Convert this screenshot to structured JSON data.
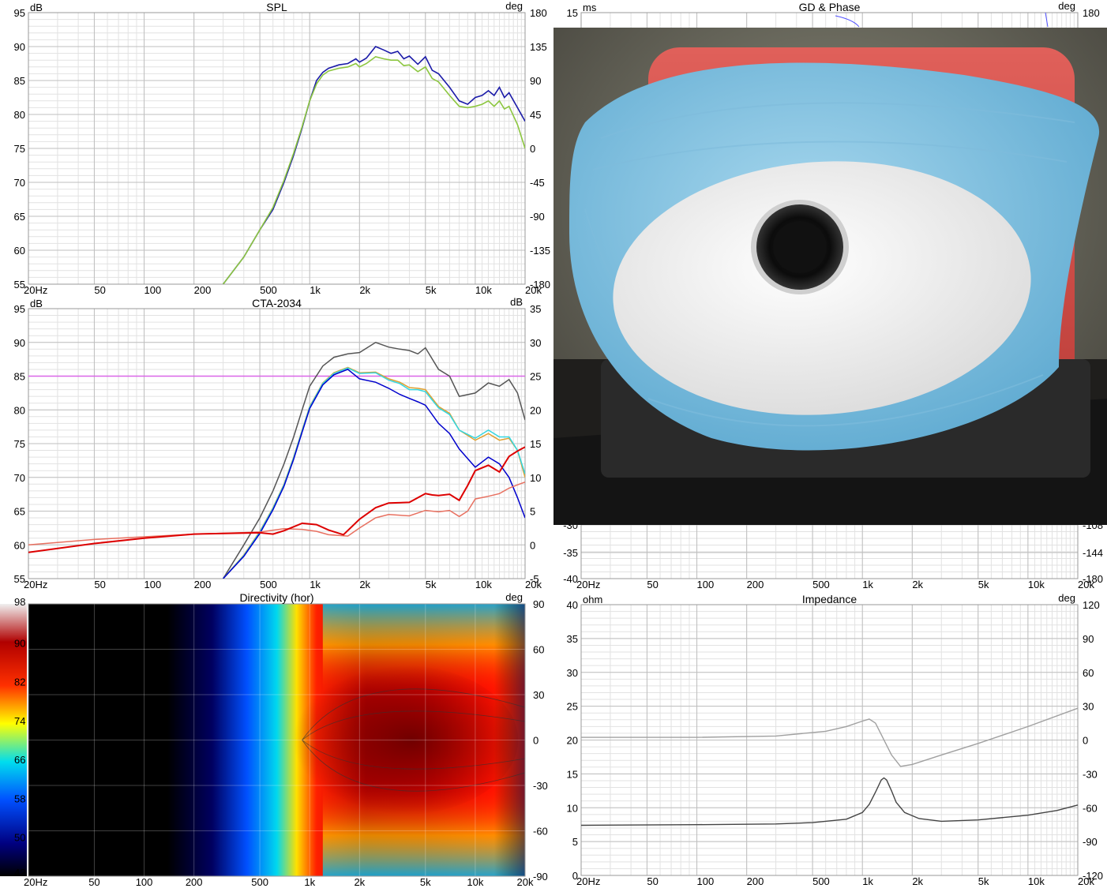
{
  "freq_ticks": [
    "20Hz",
    "50",
    "100",
    "200",
    "500",
    "1k",
    "2k",
    "5k",
    "10k",
    "20k"
  ],
  "colors": {
    "grid_major": "#bfbfbf",
    "grid_minor": "#e2e2e2",
    "spl_blue": "#1a1aa8",
    "spl_green": "#8cc63f",
    "onaxis_gray": "#555555",
    "listening_window": "#e0a030",
    "early_reflections": "#33d6e0",
    "sound_power": "#0000cc",
    "target_line": "#d966e8",
    "er_di": "#e87060",
    "sp_di": "#dd0000",
    "gd_blue": "#5050ff",
    "impedance_mag": "#444444",
    "impedance_phase": "#a0a0a0"
  },
  "chart_data": [
    {
      "type": "line",
      "id": "spl",
      "title": "SPL",
      "left_unit": "dB",
      "right_unit": "deg",
      "x_scale": "log",
      "xlim": [
        20,
        20000
      ],
      "ylim": [
        55,
        95
      ],
      "yticks": [
        "55",
        "60",
        "65",
        "70",
        "75",
        "80",
        "85",
        "90",
        "95"
      ],
      "y2lim": [
        -180,
        180
      ],
      "y2ticks": [
        "-180",
        "-135",
        "-90",
        "-45",
        "0",
        "45",
        "90",
        "135",
        "180"
      ],
      "series": [
        {
          "color_key": "spl_blue",
          "x": [
            300,
            400,
            500,
            600,
            700,
            800,
            900,
            1000,
            1100,
            1200,
            1300,
            1500,
            1700,
            1900,
            2000,
            2200,
            2500,
            2800,
            3100,
            3400,
            3700,
            4000,
            4500,
            5000,
            5500,
            6000,
            7000,
            8000,
            9000,
            10000,
            11000,
            12000,
            13000,
            14000,
            15000,
            16000,
            18000,
            20000
          ],
          "y": [
            55,
            59,
            63,
            66,
            70,
            74,
            78,
            82,
            85,
            86.2,
            86.8,
            87.3,
            87.5,
            88.2,
            87.7,
            88.3,
            90,
            89.5,
            89,
            89.3,
            88.2,
            88.6,
            87.4,
            88.5,
            86.5,
            86,
            84,
            82,
            81.5,
            82.5,
            82.8,
            83.5,
            82.8,
            84,
            82.5,
            83.2,
            81,
            79
          ]
        },
        {
          "color_key": "spl_green",
          "x": [
            300,
            400,
            500,
            600,
            700,
            800,
            900,
            1000,
            1100,
            1200,
            1300,
            1500,
            1700,
            1900,
            2000,
            2200,
            2500,
            2800,
            3100,
            3400,
            3700,
            4000,
            4500,
            5000,
            5500,
            6000,
            7000,
            8000,
            9000,
            10000,
            11000,
            12000,
            13000,
            14000,
            15000,
            16000,
            18000,
            20000
          ],
          "y": [
            55,
            59,
            63,
            66.3,
            70.3,
            74.3,
            78.2,
            82,
            84.5,
            85.8,
            86.4,
            86.8,
            87,
            87.5,
            87,
            87.5,
            88.5,
            88.2,
            88,
            88,
            87.2,
            87.3,
            86.3,
            87,
            85.3,
            84.8,
            82.8,
            81.2,
            81,
            81.2,
            81.5,
            82,
            81.2,
            82,
            80.8,
            81.2,
            78.5,
            75
          ]
        }
      ]
    },
    {
      "type": "line",
      "id": "cta",
      "title": "CTA-2034",
      "left_unit": "dB",
      "right_unit": "dB",
      "x_scale": "log",
      "xlim": [
        20,
        20000
      ],
      "ylim": [
        55,
        95
      ],
      "yticks": [
        "55",
        "60",
        "65",
        "70",
        "75",
        "80",
        "85",
        "90",
        "95"
      ],
      "y2lim": [
        -5,
        35
      ],
      "y2ticks": [
        "-5",
        "0",
        "5",
        "10",
        "15",
        "20",
        "25",
        "30",
        "35"
      ],
      "series": [
        {
          "color_key": "target_line",
          "x": [
            20,
            20000
          ],
          "y": [
            85,
            85
          ]
        },
        {
          "color_key": "onaxis_gray",
          "x": [
            300,
            400,
            500,
            600,
            700,
            800,
            900,
            1000,
            1200,
            1400,
            1700,
            2000,
            2500,
            3000,
            3500,
            4000,
            4500,
            5000,
            6000,
            7000,
            8000,
            10000,
            12000,
            14000,
            16000,
            18000,
            20000
          ],
          "y": [
            55,
            60,
            64,
            68,
            72,
            76,
            80,
            83.5,
            86.5,
            87.8,
            88.3,
            88.5,
            90,
            89.3,
            89,
            88.8,
            88.3,
            89.2,
            86,
            85,
            82,
            82.5,
            84,
            83.5,
            84.5,
            82.5,
            78.5
          ]
        },
        {
          "color_key": "listening_window",
          "x": [
            300,
            400,
            500,
            600,
            700,
            800,
            900,
            1000,
            1200,
            1400,
            1700,
            2000,
            2500,
            3000,
            3500,
            4000,
            4500,
            5000,
            6000,
            7000,
            8000,
            10000,
            12000,
            14000,
            16000,
            18000,
            20000
          ],
          "y": [
            55,
            58.5,
            62,
            65.5,
            69,
            73,
            77,
            80.5,
            84,
            85.5,
            86.3,
            85.5,
            85.6,
            84.6,
            84.1,
            83.3,
            83.2,
            83,
            80.5,
            79.5,
            77,
            75.5,
            76.5,
            75.5,
            75.8,
            74,
            70
          ]
        },
        {
          "color_key": "early_reflections",
          "x": [
            300,
            400,
            500,
            600,
            700,
            800,
            900,
            1000,
            1200,
            1400,
            1700,
            2000,
            2500,
            3000,
            3500,
            4000,
            4500,
            5000,
            6000,
            7000,
            8000,
            10000,
            12000,
            14000,
            16000,
            18000,
            20000
          ],
          "y": [
            55,
            58.4,
            61.9,
            65.4,
            68.9,
            72.9,
            76.9,
            80.4,
            83.9,
            85.4,
            86.2,
            85.4,
            85.5,
            84.4,
            83.9,
            83,
            83,
            82.7,
            80.3,
            79.3,
            77,
            75.8,
            77,
            76,
            76,
            74,
            70.5
          ]
        },
        {
          "color_key": "sound_power",
          "x": [
            300,
            400,
            500,
            600,
            700,
            800,
            900,
            1000,
            1200,
            1400,
            1700,
            2000,
            2500,
            3000,
            3500,
            4000,
            4500,
            5000,
            6000,
            7000,
            8000,
            10000,
            12000,
            14000,
            16000,
            18000,
            20000
          ],
          "y": [
            55,
            58.3,
            61.7,
            65.2,
            68.7,
            72.7,
            76.7,
            80.2,
            83.7,
            85.2,
            86,
            84.6,
            84.1,
            83.2,
            82.3,
            81.7,
            81.2,
            80.7,
            78,
            76.5,
            74.2,
            71.5,
            73,
            72,
            70,
            67,
            64
          ]
        },
        {
          "color_key": "er_di",
          "x": [
            20,
            50,
            100,
            200,
            500,
            700,
            900,
            1100,
            1300,
            1700,
            2000,
            2500,
            3000,
            4000,
            5000,
            6000,
            7000,
            8000,
            9000,
            10000,
            12000,
            14000,
            16000,
            18000,
            20000
          ],
          "y": [
            60,
            60.8,
            61.2,
            61.6,
            61.9,
            62.4,
            62.3,
            62,
            61.5,
            61.3,
            62.5,
            64,
            64.5,
            64.3,
            65.1,
            64.9,
            65.1,
            64.2,
            65,
            66.8,
            67.2,
            67.6,
            68.4,
            68.9,
            69.3
          ]
        },
        {
          "color_key": "sp_di",
          "x": [
            20,
            50,
            100,
            200,
            500,
            600,
            700,
            900,
            1100,
            1300,
            1600,
            2000,
            2500,
            3000,
            4000,
            5000,
            5500,
            6000,
            7000,
            8000,
            9000,
            10000,
            12000,
            14000,
            16000,
            18000,
            20000
          ],
          "y": [
            58.9,
            60.2,
            61,
            61.6,
            61.8,
            61.6,
            62.1,
            63.2,
            63,
            62.2,
            61.5,
            63.8,
            65.5,
            66.2,
            66.3,
            67.6,
            67.4,
            67.3,
            67.5,
            66.6,
            68.8,
            71,
            71.8,
            70.8,
            73.1,
            73.9,
            74.5
          ]
        }
      ]
    },
    {
      "type": "heatmap",
      "id": "directivity",
      "title": "Directivity (hor)",
      "right_unit": "deg",
      "x_scale": "log",
      "xlim": [
        20,
        20000
      ],
      "ylim": [
        -90,
        90
      ],
      "y2ticks": [
        "-90",
        "-60",
        "-30",
        "0",
        "30",
        "60",
        "90"
      ],
      "colorbar_ticks": [
        "42",
        "50",
        "58",
        "66",
        "74",
        "82",
        "90",
        "98"
      ],
      "colorbar_range": [
        42,
        98
      ]
    },
    {
      "type": "line",
      "id": "gd_phase",
      "title": "GD & Phase",
      "left_unit": "ms",
      "right_unit": "deg",
      "x_scale": "log",
      "xlim": [
        20,
        20000
      ],
      "yticks_visible": [
        "15",
        "-30",
        "-35",
        "-40"
      ],
      "y2ticks_visible": [
        "180",
        "-108",
        "-144",
        "-180"
      ],
      "series": []
    },
    {
      "type": "line",
      "id": "impedance",
      "title": "Impedance",
      "left_unit": "ohm",
      "right_unit": "deg",
      "x_scale": "log",
      "xlim": [
        20,
        20000
      ],
      "ylim": [
        0,
        40
      ],
      "yticks": [
        "0",
        "5",
        "10",
        "15",
        "20",
        "25",
        "30",
        "35",
        "40"
      ],
      "y2lim": [
        -120,
        120
      ],
      "y2ticks": [
        "-120",
        "-90",
        "-60",
        "-30",
        "0",
        "30",
        "60",
        "90",
        "120"
      ],
      "series": [
        {
          "color_key": "impedance_phase",
          "x": [
            20,
            100,
            300,
            600,
            800,
            1000,
            1100,
            1200,
            1300,
            1500,
            1700,
            2000,
            3000,
            5000,
            10000,
            20000
          ],
          "y": [
            20.4,
            20.4,
            20.6,
            21.3,
            22,
            22.8,
            23.1,
            22.5,
            20.8,
            17.8,
            16.1,
            16.4,
            17.8,
            19.5,
            22,
            24.7
          ]
        },
        {
          "color_key": "impedance_mag",
          "x": [
            20,
            100,
            300,
            500,
            800,
            1000,
            1100,
            1200,
            1300,
            1350,
            1400,
            1500,
            1600,
            1800,
            2200,
            3000,
            5000,
            10000,
            15000,
            20000
          ],
          "y": [
            7.4,
            7.5,
            7.6,
            7.8,
            8.3,
            9.3,
            10.5,
            12.3,
            14.1,
            14.4,
            14.1,
            12.5,
            10.8,
            9.3,
            8.4,
            8,
            8.2,
            8.9,
            9.6,
            10.4
          ]
        }
      ]
    }
  ]
}
